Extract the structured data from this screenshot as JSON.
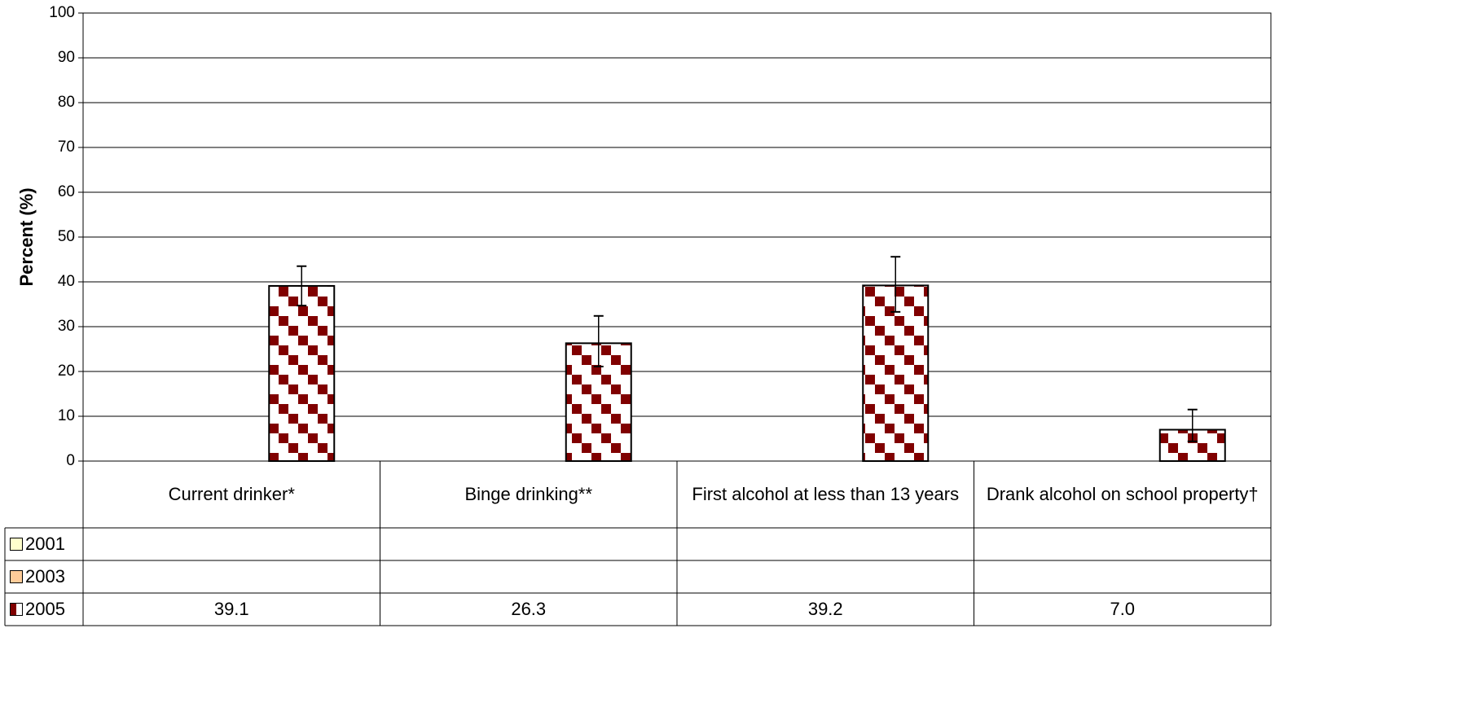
{
  "chart_data": {
    "type": "bar",
    "ylabel": "Percent (%)",
    "categories": [
      "Current drinker*",
      "Binge drinking**",
      "First alcohol at less than 13 years",
      "Drank alcohol on school property†"
    ],
    "series": [
      {
        "name": "2001",
        "color": "#ffffcc",
        "values": [
          null,
          null,
          null,
          null
        ]
      },
      {
        "name": "2003",
        "color": "#ffcc99",
        "values": [
          null,
          null,
          null,
          null
        ]
      },
      {
        "name": "2005",
        "color": "#800000",
        "pattern": "checker",
        "values": [
          39.1,
          26.3,
          39.2,
          7.0
        ],
        "value_labels": [
          "39.1",
          "26.3",
          "39.2",
          "7.0"
        ],
        "ci_lower": [
          34.7,
          21.1,
          33.3,
          4.4
        ],
        "ci_upper": [
          43.5,
          32.4,
          45.6,
          11.5
        ]
      }
    ],
    "ylim": [
      0,
      100
    ],
    "yticks": [
      0,
      10,
      20,
      30,
      40,
      50,
      60,
      70,
      80,
      90,
      100
    ],
    "grid": true,
    "legend": "table"
  }
}
